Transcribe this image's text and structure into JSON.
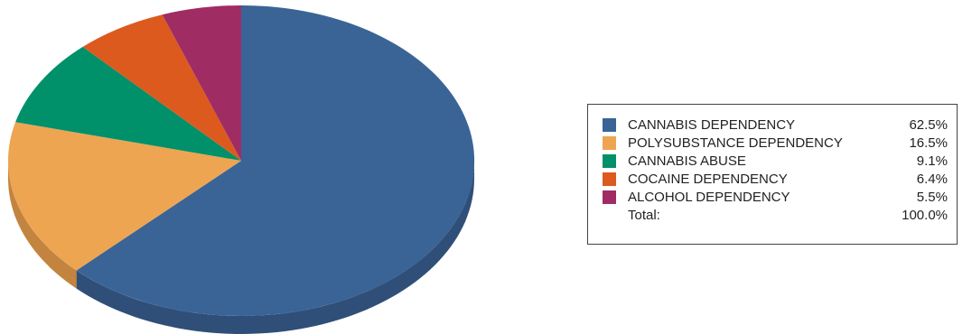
{
  "chart_data": {
    "type": "pie",
    "title": "",
    "categories": [
      "CANNABIS DEPENDENCY",
      "POLYSUBSTANCE DEPENDENCY",
      "CANNABIS ABUSE",
      "COCAINE DEPENDENCY",
      "ALCOHOL DEPENDENCY"
    ],
    "values": [
      62.5,
      16.5,
      9.1,
      6.4,
      5.5
    ],
    "value_labels": [
      "62.5%",
      "16.5%",
      "9.1%",
      "6.4%",
      "5.5%"
    ],
    "colors": [
      "#3a6496",
      "#eda552",
      "#00906a",
      "#dc5a1e",
      "#a02c64"
    ],
    "side_colors": [
      "#2f4f78",
      "#c2843e",
      "#007356",
      "#b04a18",
      "#7f2350"
    ],
    "style": "3d",
    "legend_position": "right",
    "total": {
      "label": "Total:",
      "value": "100.0%"
    }
  }
}
